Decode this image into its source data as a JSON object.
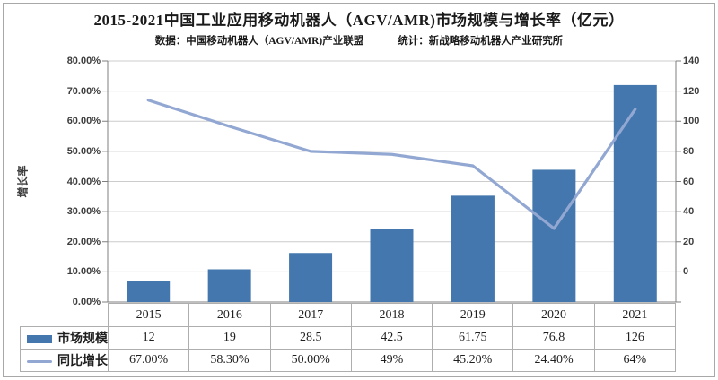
{
  "header": {
    "title": "2015-2021中国工业应用移动机器人（AGV/AMR)市场规模与增长率（亿元）",
    "subtitle_source": "数据：中国移动机器人（AGV/AMR)产业联盟",
    "subtitle_stat": "统计：新战略移动机器人产业研究所"
  },
  "chart_data": {
    "type": "bar+line",
    "categories": [
      "2015",
      "2016",
      "2017",
      "2018",
      "2019",
      "2020",
      "2021"
    ],
    "series": [
      {
        "name": "市场规模",
        "type": "bar",
        "axis": "right",
        "values": [
          12,
          19,
          28.5,
          42.5,
          61.75,
          76.8,
          126
        ],
        "display": [
          "12",
          "19",
          "28.5",
          "42.5",
          "61.75",
          "76.8",
          "126"
        ],
        "color": "#4477ad"
      },
      {
        "name": "同比增长率",
        "type": "line",
        "axis": "left",
        "values": [
          67,
          58.3,
          50,
          49,
          45.2,
          24.4,
          64
        ],
        "display": [
          "67.00%",
          "58.30%",
          "50.00%",
          "49%",
          "45.20%",
          "24.40%",
          "64%"
        ],
        "color": "#92a8d2"
      }
    ],
    "left_axis": {
      "title": "增长率",
      "min": 0,
      "max": 80,
      "tick_step": 10,
      "ticks": [
        "80.00%",
        "70.00%",
        "60.00%",
        "50.00%",
        "40.00%",
        "30.00%",
        "20.00%",
        "10.00%",
        "0.00%"
      ]
    },
    "right_axis": {
      "min": 0,
      "max": 140,
      "tick_step": 20,
      "ticks": [
        "140",
        "120",
        "100",
        "80",
        "60",
        "40",
        "20",
        "0"
      ]
    },
    "grid": true,
    "legend_position": "table-left"
  }
}
